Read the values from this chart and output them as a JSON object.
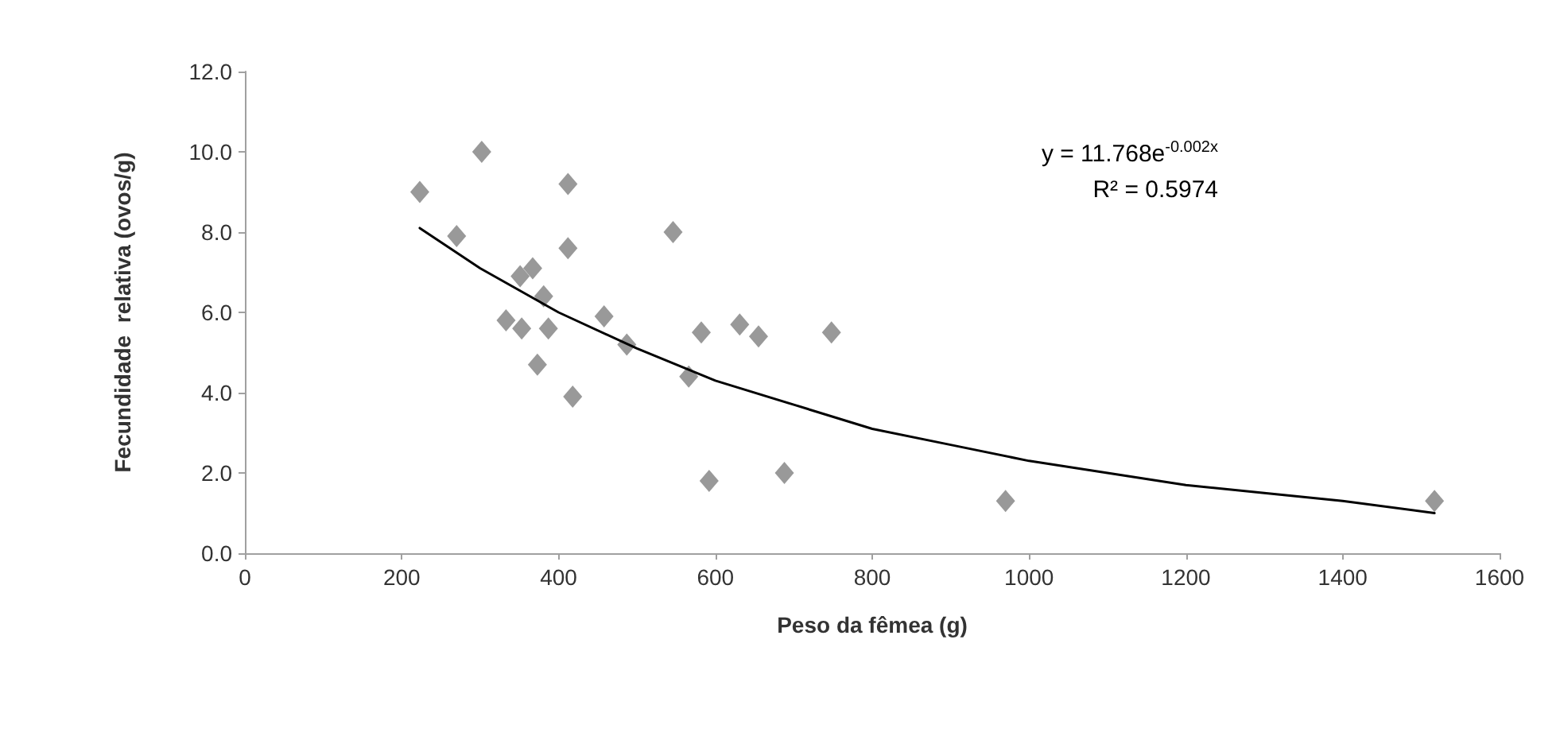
{
  "chart_data": {
    "type": "scatter",
    "xlabel": "Peso da fêmea (g)",
    "ylabel": "Fecundidade  relativa (ovos/g)",
    "xlim": [
      0,
      1600
    ],
    "xticks": [
      0,
      200,
      400,
      600,
      800,
      1000,
      1200,
      1400,
      1600
    ],
    "ylim": [
      0,
      12
    ],
    "yticks": [
      {
        "value": 0,
        "label": "0.0"
      },
      {
        "value": 2,
        "label": "2.0"
      },
      {
        "value": 4,
        "label": "4.0"
      },
      {
        "value": 6,
        "label": "6.0"
      },
      {
        "value": 8,
        "label": "8.0"
      },
      {
        "value": 10,
        "label": "10.0"
      },
      {
        "value": 12,
        "label": "12.0"
      }
    ],
    "grid": false,
    "marker": "diamond",
    "annotations": [
      "y = 11.768e$^{-0.002x}$",
      "R² = 0.5974"
    ],
    "series": [
      {
        "color": "#808080",
        "x": [
          223,
          302,
          270,
          412,
          412,
          546,
          351,
          367,
          381,
          333,
          353,
          387,
          458,
          487,
          373,
          418,
          582,
          631,
          655,
          566,
          592,
          688,
          748,
          970,
          1517
        ],
        "values": [
          9.0,
          10.0,
          7.9,
          9.2,
          7.6,
          8.0,
          6.9,
          7.1,
          6.4,
          5.8,
          5.6,
          5.6,
          5.9,
          5.2,
          4.7,
          3.9,
          5.5,
          5.7,
          5.4,
          4.4,
          1.8,
          2.0,
          5.5,
          1.3,
          1.3
        ]
      },
      {
        "type": "line",
        "color": "#000000",
        "marker": "none",
        "x": [
          223,
          300,
          400,
          500,
          600,
          700,
          800,
          900,
          1000,
          1100,
          1200,
          1300,
          1400,
          1517
        ],
        "values": [
          8.1,
          7.1,
          6.0,
          5.1,
          4.3,
          3.7,
          3.1,
          2.7,
          2.3,
          2.0,
          1.7,
          1.5,
          1.3,
          1.0
        ]
      }
    ]
  }
}
